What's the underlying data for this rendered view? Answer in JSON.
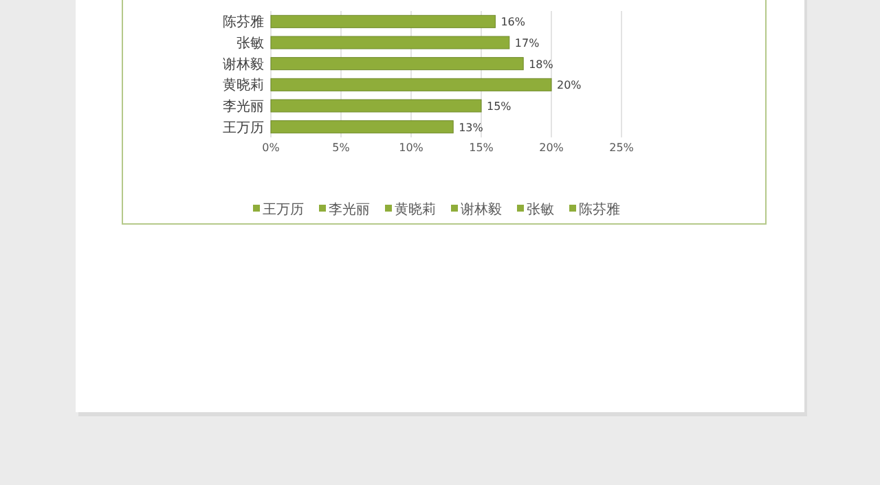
{
  "chart_data": {
    "type": "bar",
    "orientation": "horizontal",
    "stacked": true,
    "categories": [
      "陈芬雅",
      "张敏",
      "谢林毅",
      "黄晓莉",
      "李光丽",
      "王万历"
    ],
    "series": [
      {
        "name": "王万历",
        "color": "#8fad3a",
        "values": [
          null,
          null,
          null,
          null,
          null,
          13
        ],
        "value_labels": [
          null,
          null,
          null,
          null,
          null,
          "13%"
        ]
      },
      {
        "name": "李光丽",
        "color": "#8fad3a",
        "values": [
          null,
          null,
          null,
          null,
          15,
          null
        ],
        "value_labels": [
          null,
          null,
          null,
          null,
          "15%",
          null
        ]
      },
      {
        "name": "黄晓莉",
        "color": "#8fad3a",
        "values": [
          null,
          null,
          null,
          20,
          null,
          null
        ],
        "value_labels": [
          null,
          null,
          null,
          "20%",
          null,
          null
        ]
      },
      {
        "name": "谢林毅",
        "color": "#8fad3a",
        "values": [
          null,
          null,
          18,
          null,
          null,
          null
        ],
        "value_labels": [
          null,
          null,
          "18%",
          null,
          null,
          null
        ]
      },
      {
        "name": "张敏",
        "color": "#8fad3a",
        "values": [
          null,
          17,
          null,
          null,
          null,
          null
        ],
        "value_labels": [
          null,
          "17%",
          null,
          null,
          null,
          null
        ]
      },
      {
        "name": "陈芬雅",
        "color": "#8fad3a",
        "values": [
          16,
          null,
          null,
          null,
          null,
          null
        ],
        "value_labels": [
          "16%",
          null,
          null,
          null,
          null,
          null
        ]
      }
    ],
    "xlim": [
      0,
      25
    ],
    "xticks": [
      {
        "value": 0,
        "label": "0%"
      },
      {
        "value": 5,
        "label": "5%"
      },
      {
        "value": 10,
        "label": "10%"
      },
      {
        "value": 15,
        "label": "15%"
      },
      {
        "value": 20,
        "label": "20%"
      },
      {
        "value": 25,
        "label": "25%"
      }
    ],
    "grid": "x",
    "legend": "bottom"
  }
}
